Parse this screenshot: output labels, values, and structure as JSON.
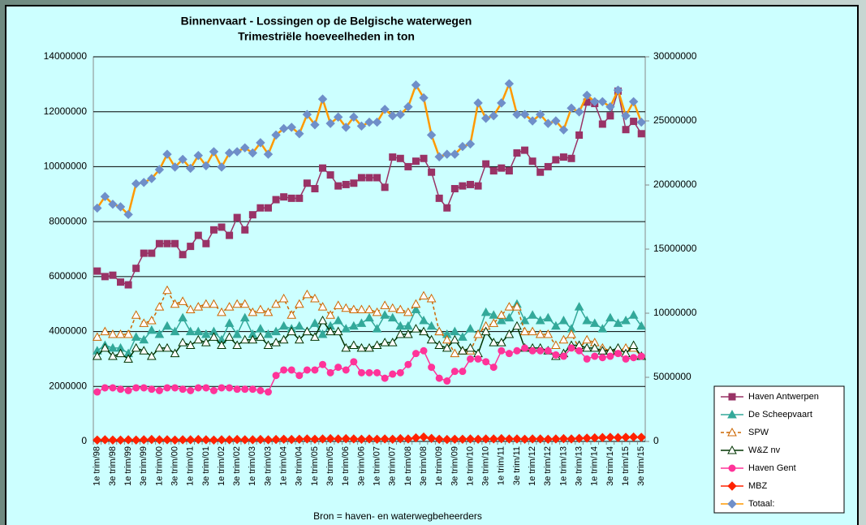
{
  "chart_data": {
    "type": "line",
    "title": "Binnenvaart - Lossingen op de Belgische waterwegen",
    "subtitle": "Trimestriële hoeveelheden in ton",
    "source": "Bron = haven- en waterwegbeheerders",
    "categories": [
      "1e trim/98",
      null,
      "3e trim/98",
      null,
      "1e trim/99",
      null,
      "3e trim/99",
      null,
      "1e trim/00",
      null,
      "3e trim/00",
      null,
      "1e trim/01",
      null,
      "3e trim/01",
      null,
      "1e trim/02",
      null,
      "3e trim/02",
      null,
      "1e trim/03",
      null,
      "3e trim/03",
      null,
      "1e trim/04",
      null,
      "3e trim/04",
      null,
      "1e trim/05",
      null,
      "3e trim/05",
      null,
      "1e trim/06",
      null,
      "3e trim/06",
      null,
      "1e trim/07",
      null,
      "3e trim/07",
      null,
      "1e trim/08",
      null,
      "3e trim/08",
      null,
      "1e trim/09",
      null,
      "3e trim/09",
      null,
      "1e trim/10",
      null,
      "3e trim/10",
      null,
      "1e trim/11",
      null,
      "3e trim/11",
      null,
      "1e trim/12",
      null,
      "3e trim/12",
      null,
      "1e trim/13",
      null,
      "3e trim/13",
      null,
      "1e trim/14",
      null,
      "3e trim/14",
      null,
      "1e trim/15",
      null,
      "3e trim/15"
    ],
    "ylim": [
      0,
      14000000
    ],
    "yticks": [
      0,
      2000000,
      4000000,
      6000000,
      8000000,
      10000000,
      12000000,
      14000000
    ],
    "y2lim": [
      0,
      30000000
    ],
    "y2ticks": [
      0,
      5000000,
      10000000,
      15000000,
      20000000,
      25000000,
      30000000
    ],
    "grid": true,
    "legend": "bottom-right",
    "series": [
      {
        "name": "Haven Antwerpen",
        "color": "#993366",
        "marker": "square",
        "values": [
          6200000,
          6000000,
          6050000,
          5800000,
          5700000,
          6300000,
          6850000,
          6850000,
          7200000,
          7200000,
          7200000,
          6800000,
          7100000,
          7500000,
          7200000,
          7700000,
          7800000,
          7500000,
          8150000,
          7700000,
          8250000,
          8500000,
          8500000,
          8800000,
          8900000,
          8850000,
          8850000,
          9400000,
          9200000,
          9950000,
          9700000,
          9300000,
          9350000,
          9400000,
          9600000,
          9600000,
          9600000,
          9250000,
          10350000,
          10300000,
          10000000,
          10200000,
          10300000,
          9800000,
          8850000,
          8500000,
          9200000,
          9300000,
          9350000,
          9300000,
          10100000,
          9850000,
          9950000,
          9850000,
          10500000,
          10600000,
          10200000,
          9800000,
          10000000,
          10250000,
          10350000,
          10300000,
          11150000,
          12350000,
          12300000,
          11550000,
          11850000,
          12750000,
          11350000,
          11650000,
          11200000
        ]
      },
      {
        "name": "De Scheepvaart",
        "color": "#33a99a",
        "marker": "triangle",
        "values": [
          3300000,
          3500000,
          3400000,
          3400000,
          3200000,
          3800000,
          3700000,
          4050000,
          3900000,
          4200000,
          4000000,
          4500000,
          4000000,
          4000000,
          3900000,
          4000000,
          3700000,
          4300000,
          3900000,
          4500000,
          3900000,
          4100000,
          3900000,
          4000000,
          4200000,
          4100000,
          4200000,
          4000000,
          4300000,
          3900000,
          4200000,
          4400000,
          4100000,
          4200000,
          4300000,
          4500000,
          4100000,
          4600000,
          4500000,
          4200000,
          4200000,
          4800000,
          4400000,
          4200000,
          4000000,
          3900000,
          4000000,
          3800000,
          4100000,
          3900000,
          4700000,
          4600000,
          4400000,
          4500000,
          5000000,
          4400000,
          4600000,
          4400000,
          4500000,
          4200000,
          4400000,
          4100000,
          4900000,
          4400000,
          4300000,
          4100000,
          4500000,
          4300000,
          4400000,
          4600000,
          4200000
        ]
      },
      {
        "name": "SPW",
        "color": "#cc6600",
        "marker": "triangle",
        "hollow": true,
        "dashed": true,
        "values": [
          3800000,
          4000000,
          3900000,
          3900000,
          3900000,
          4600000,
          4300000,
          4400000,
          4900000,
          5500000,
          5000000,
          5100000,
          4800000,
          4900000,
          5000000,
          5000000,
          4700000,
          4900000,
          5000000,
          5000000,
          4700000,
          4800000,
          4700000,
          5000000,
          5200000,
          4600000,
          5000000,
          5350000,
          5200000,
          4900000,
          4600000,
          4950000,
          4850000,
          4800000,
          4800000,
          4800000,
          4700000,
          4950000,
          4850000,
          4800000,
          4700000,
          5000000,
          5300000,
          5200000,
          4000000,
          3700000,
          3200000,
          3300000,
          3300000,
          3900000,
          4200000,
          4300000,
          4600000,
          4900000,
          4900000,
          4000000,
          4000000,
          3900000,
          3900000,
          3500000,
          3700000,
          3900000,
          3400000,
          3700000,
          3600000,
          3400000,
          3300000,
          3300000,
          3400000,
          3400000,
          3100000
        ]
      },
      {
        "name": "W&Z nv",
        "color": "#003300",
        "marker": "triangle",
        "hollow": true,
        "values": [
          3100000,
          3400000,
          3100000,
          3200000,
          3000000,
          3400000,
          3300000,
          3100000,
          3400000,
          3400000,
          3200000,
          3600000,
          3500000,
          3700000,
          3600000,
          3800000,
          3500000,
          3800000,
          3500000,
          3700000,
          3700000,
          3800000,
          3500000,
          3600000,
          3700000,
          4000000,
          3700000,
          4000000,
          3800000,
          4400000,
          4000000,
          4000000,
          3400000,
          3500000,
          3400000,
          3400000,
          3500000,
          3600000,
          3600000,
          3900000,
          3900000,
          4100000,
          4000000,
          3700000,
          3500000,
          3400000,
          3700000,
          3300000,
          3400000,
          3200000,
          4000000,
          3600000,
          3600000,
          3900000,
          4200000,
          3400000,
          3400000,
          3400000,
          3300000,
          3100000,
          3200000,
          3500000,
          3500000,
          3400000,
          3400000,
          3300000,
          3300000,
          3400000,
          3200000,
          3500000,
          3100000
        ]
      },
      {
        "name": "Haven Gent",
        "color": "#ff3399",
        "marker": "circle",
        "values": [
          1800000,
          1950000,
          1950000,
          1900000,
          1850000,
          1950000,
          1950000,
          1900000,
          1850000,
          1950000,
          1950000,
          1900000,
          1850000,
          1950000,
          1950000,
          1850000,
          1950000,
          1950000,
          1900000,
          1900000,
          1900000,
          1850000,
          1800000,
          2400000,
          2600000,
          2600000,
          2400000,
          2600000,
          2600000,
          2800000,
          2500000,
          2700000,
          2600000,
          2900000,
          2500000,
          2500000,
          2500000,
          2300000,
          2450000,
          2500000,
          2800000,
          3200000,
          3300000,
          2700000,
          2300000,
          2200000,
          2550000,
          2550000,
          3000000,
          3000000,
          2900000,
          2700000,
          3300000,
          3200000,
          3300000,
          3400000,
          3300000,
          3300000,
          3300000,
          3150000,
          3100000,
          3400000,
          3300000,
          3000000,
          3100000,
          3050000,
          3100000,
          3200000,
          3000000,
          3050000,
          3100000
        ]
      },
      {
        "name": "MBZ",
        "color": "#ff2200",
        "marker": "diamond",
        "values": [
          50000,
          60000,
          50000,
          50000,
          60000,
          50000,
          60000,
          70000,
          60000,
          60000,
          50000,
          60000,
          60000,
          70000,
          60000,
          50000,
          60000,
          60000,
          70000,
          60000,
          60000,
          70000,
          60000,
          70000,
          80000,
          70000,
          80000,
          90000,
          80000,
          90000,
          100000,
          90000,
          100000,
          90000,
          80000,
          90000,
          80000,
          90000,
          80000,
          100000,
          90000,
          130000,
          160000,
          110000,
          80000,
          70000,
          80000,
          80000,
          90000,
          80000,
          90000,
          90000,
          100000,
          90000,
          90000,
          80000,
          90000,
          90000,
          80000,
          90000,
          100000,
          90000,
          110000,
          120000,
          130000,
          140000,
          150000,
          140000,
          150000,
          160000,
          150000
        ]
      },
      {
        "name": "Totaal:",
        "color": "#ff9900",
        "marker": "diamond",
        "marker_color": "#6f8fc9",
        "axis": "y2",
        "values": [
          18200000,
          19100000,
          18500000,
          18300000,
          17700000,
          20100000,
          20200000,
          20500000,
          21200000,
          22400000,
          21400000,
          22000000,
          21300000,
          22300000,
          21500000,
          22600000,
          21400000,
          22500000,
          22600000,
          22900000,
          22500000,
          23300000,
          22400000,
          23900000,
          24400000,
          24500000,
          24000000,
          25500000,
          24700000,
          26700000,
          24800000,
          25300000,
          24500000,
          25300000,
          24600000,
          24900000,
          24900000,
          25900000,
          25400000,
          25500000,
          26100000,
          27800000,
          26800000,
          23900000,
          22200000,
          22400000,
          22400000,
          23000000,
          23200000,
          26400000,
          25200000,
          25400000,
          26400000,
          27900000,
          25500000,
          25500000,
          25000000,
          25500000,
          24800000,
          25000000,
          24300000,
          26000000,
          25700000,
          27000000,
          26500000,
          26500000,
          26100000,
          27400000,
          25400000,
          26500000,
          24900000
        ]
      }
    ]
  }
}
